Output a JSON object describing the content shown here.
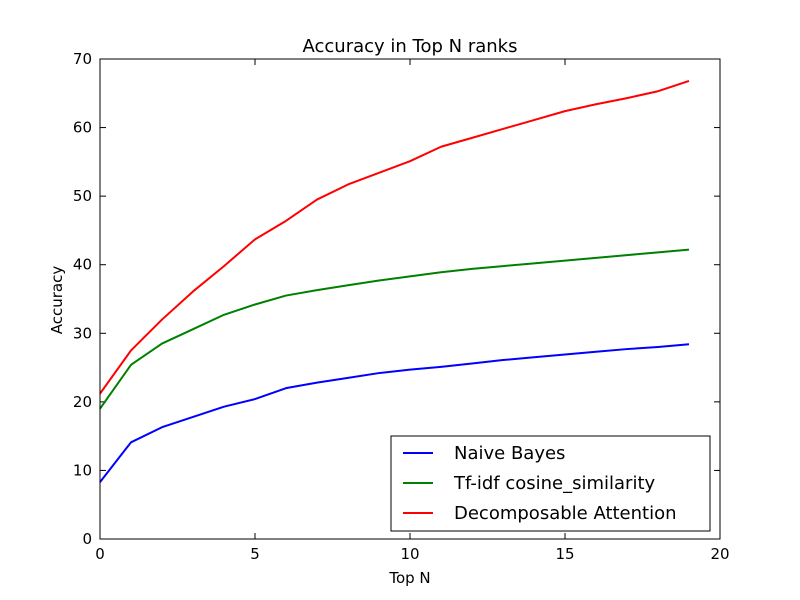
{
  "chart_data": {
    "type": "line",
    "title": "Accuracy in Top N ranks",
    "xlabel": "Top N",
    "ylabel": "Accuracy",
    "xlim": [
      0,
      20
    ],
    "ylim": [
      0,
      70
    ],
    "xticks": [
      0,
      5,
      10,
      15,
      20
    ],
    "yticks": [
      0,
      10,
      20,
      30,
      40,
      50,
      60,
      70
    ],
    "grid": false,
    "legend_position": "bottom-right",
    "x": [
      0,
      1,
      2,
      3,
      4,
      5,
      6,
      7,
      8,
      9,
      10,
      11,
      12,
      13,
      14,
      15,
      16,
      17,
      18,
      19
    ],
    "series": [
      {
        "name": "Naive Bayes",
        "color": "#0000ff",
        "values": [
          8.3,
          14.1,
          16.3,
          17.8,
          19.3,
          20.4,
          22.0,
          22.8,
          23.5,
          24.2,
          24.7,
          25.1,
          25.6,
          26.1,
          26.5,
          26.9,
          27.3,
          27.7,
          28.0,
          28.4
        ]
      },
      {
        "name": "Tf-idf cosine_similarity",
        "color": "#008000",
        "values": [
          19.0,
          25.4,
          28.5,
          30.6,
          32.7,
          34.2,
          35.5,
          36.3,
          37.0,
          37.7,
          38.3,
          38.9,
          39.4,
          39.8,
          40.2,
          40.6,
          41.0,
          41.4,
          41.8,
          42.2
        ]
      },
      {
        "name": "Decomposable Attention",
        "color": "#ff0000",
        "values": [
          21.2,
          27.5,
          32.0,
          36.1,
          39.8,
          43.7,
          46.4,
          49.5,
          51.7,
          53.4,
          55.1,
          57.2,
          58.5,
          59.8,
          61.1,
          62.4,
          63.4,
          64.3,
          65.3,
          66.8
        ]
      }
    ]
  }
}
